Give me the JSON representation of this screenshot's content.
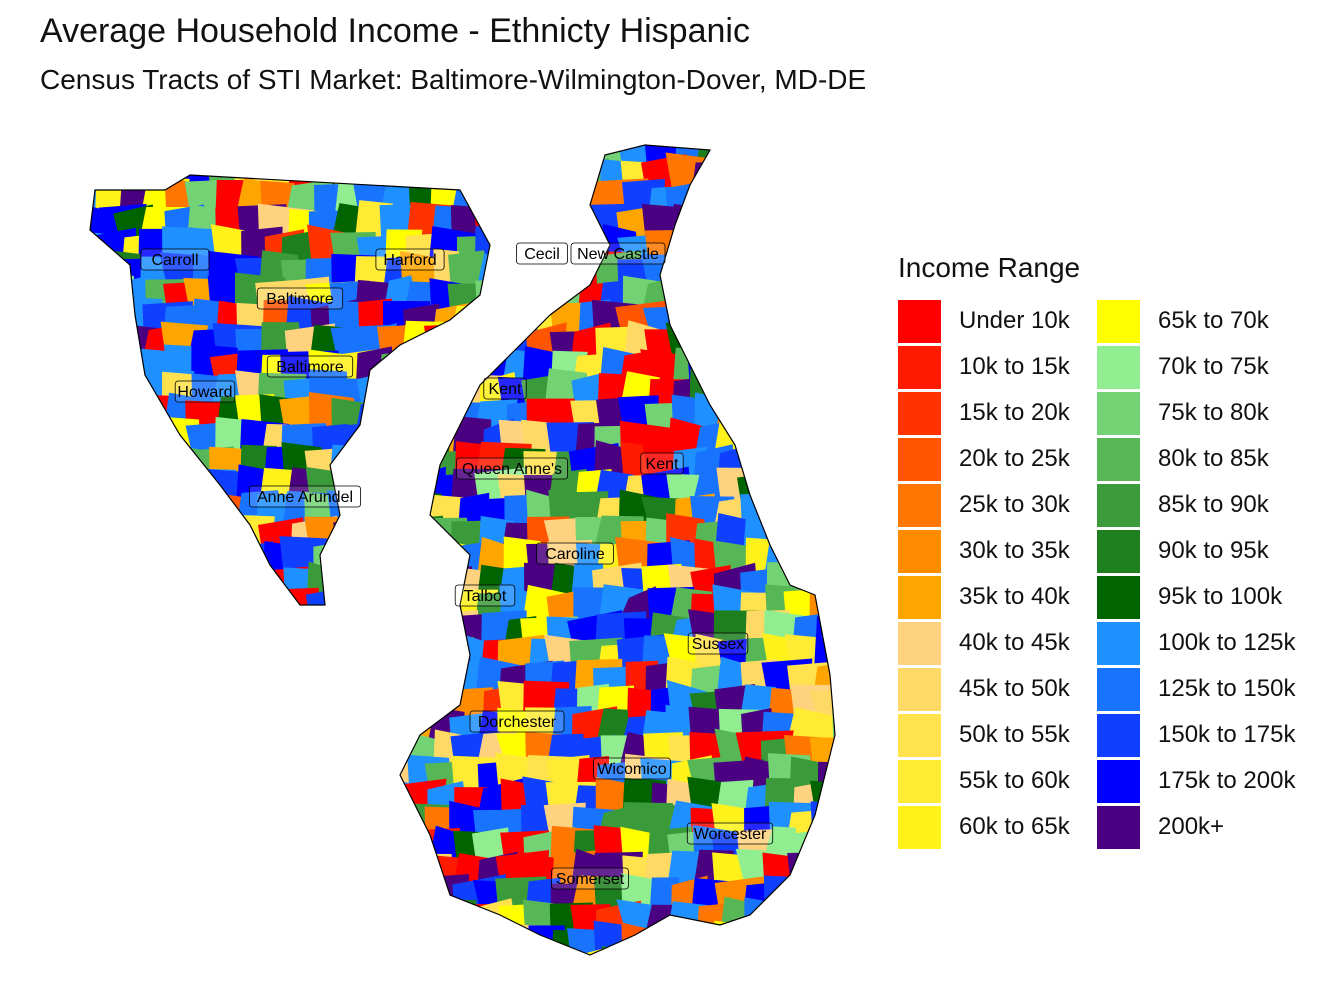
{
  "title": "Average Household Income - Ethnicty Hispanic",
  "subtitle": "Census Tracts of STI Market: Baltimore-Wilmington-Dover, MD-DE",
  "legend": {
    "title": "Income Range",
    "items": [
      {
        "label": "Under 10k",
        "color": "#ff0000"
      },
      {
        "label": "10k to 15k",
        "color": "#ff1a00"
      },
      {
        "label": "15k to 20k",
        "color": "#ff3300"
      },
      {
        "label": "20k to 25k",
        "color": "#ff5500"
      },
      {
        "label": "25k to 30k",
        "color": "#ff7700"
      },
      {
        "label": "30k to 35k",
        "color": "#ff8c00"
      },
      {
        "label": "35k to 40k",
        "color": "#ffa500"
      },
      {
        "label": "40k to 45k",
        "color": "#ffd27f"
      },
      {
        "label": "45k to 50k",
        "color": "#ffd966"
      },
      {
        "label": "50k to 55k",
        "color": "#ffe24d"
      },
      {
        "label": "55k to 60k",
        "color": "#ffeb33"
      },
      {
        "label": "60k to 65k",
        "color": "#fff21a"
      },
      {
        "label": "65k to 70k",
        "color": "#ffff00"
      },
      {
        "label": "70k to 75k",
        "color": "#90ee90"
      },
      {
        "label": "75k to 80k",
        "color": "#73d273"
      },
      {
        "label": "80k to 85k",
        "color": "#57b757"
      },
      {
        "label": "85k to 90k",
        "color": "#3b9b3b"
      },
      {
        "label": "90k to 95k",
        "color": "#1e7f1e"
      },
      {
        "label": "95k to 100k",
        "color": "#006400"
      },
      {
        "label": "100k to 125k",
        "color": "#1e90ff"
      },
      {
        "label": "125k to 150k",
        "color": "#1873ff"
      },
      {
        "label": "150k to 175k",
        "color": "#0f3fff"
      },
      {
        "label": "175k to 200k",
        "color": "#0000ff"
      },
      {
        "label": "200k+",
        "color": "#4b0082"
      }
    ]
  },
  "counties": [
    "Carroll",
    "Harford",
    "Cecil",
    "New Castle",
    "Baltimore",
    "Baltimore",
    "Howard",
    "Kent",
    "Kent",
    "Queen Anne's",
    "Anne Arundel",
    "Caroline",
    "Talbot",
    "Sussex",
    "Dorchester",
    "Wicomico",
    "Worcester",
    "Somerset"
  ]
}
